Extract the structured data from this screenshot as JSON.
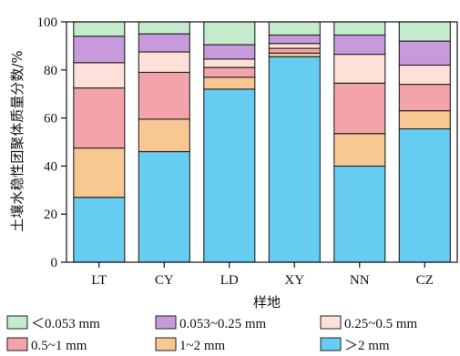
{
  "chart_data": {
    "type": "bar",
    "stacked": true,
    "categories": [
      "LT",
      "CY",
      "LD",
      "XY",
      "NN",
      "CZ"
    ],
    "xlabel": "样地",
    "ylabel": "土壤水稳性团聚体质量分数/%",
    "ylim": [
      0,
      100
    ],
    "yticks": [
      0,
      20,
      40,
      60,
      80,
      100
    ],
    "grid": false,
    "legend": "bottom",
    "series": [
      {
        "name": ">2 mm",
        "legend_label": "＞2 mm",
        "color": "#66ccf2",
        "values": [
          27,
          46,
          72,
          85.5,
          40,
          55.5
        ]
      },
      {
        "name": "1~2 mm",
        "legend_label": "1~2 mm",
        "color": "#f8c892",
        "values": [
          20.5,
          13.5,
          5,
          1.5,
          13.5,
          7.5
        ]
      },
      {
        "name": "0.5~1 mm",
        "legend_label": "0.5~1 mm",
        "color": "#f3a4aa",
        "values": [
          25,
          19.5,
          4,
          2,
          21,
          11
        ]
      },
      {
        "name": "0.25~0.5 mm",
        "legend_label": "0.25~0.5 mm",
        "color": "#fde0d8",
        "values": [
          10.5,
          8.5,
          3.5,
          2,
          12,
          8
        ]
      },
      {
        "name": "0.053~0.25 mm",
        "legend_label": "0.053~0.25 mm",
        "color": "#c79bdb",
        "values": [
          11,
          7.5,
          6,
          3.5,
          8,
          10
        ]
      },
      {
        "name": "<0.053 mm",
        "legend_label": "＜0.053 mm",
        "color": "#c5ebcc",
        "values": [
          6,
          5,
          9.5,
          5.5,
          5.5,
          8
        ]
      }
    ],
    "legend_order": [
      "<0.053 mm",
      "0.053~0.25 mm",
      "0.25~0.5 mm",
      "0.5~1 mm",
      "1~2 mm",
      ">2 mm"
    ]
  }
}
